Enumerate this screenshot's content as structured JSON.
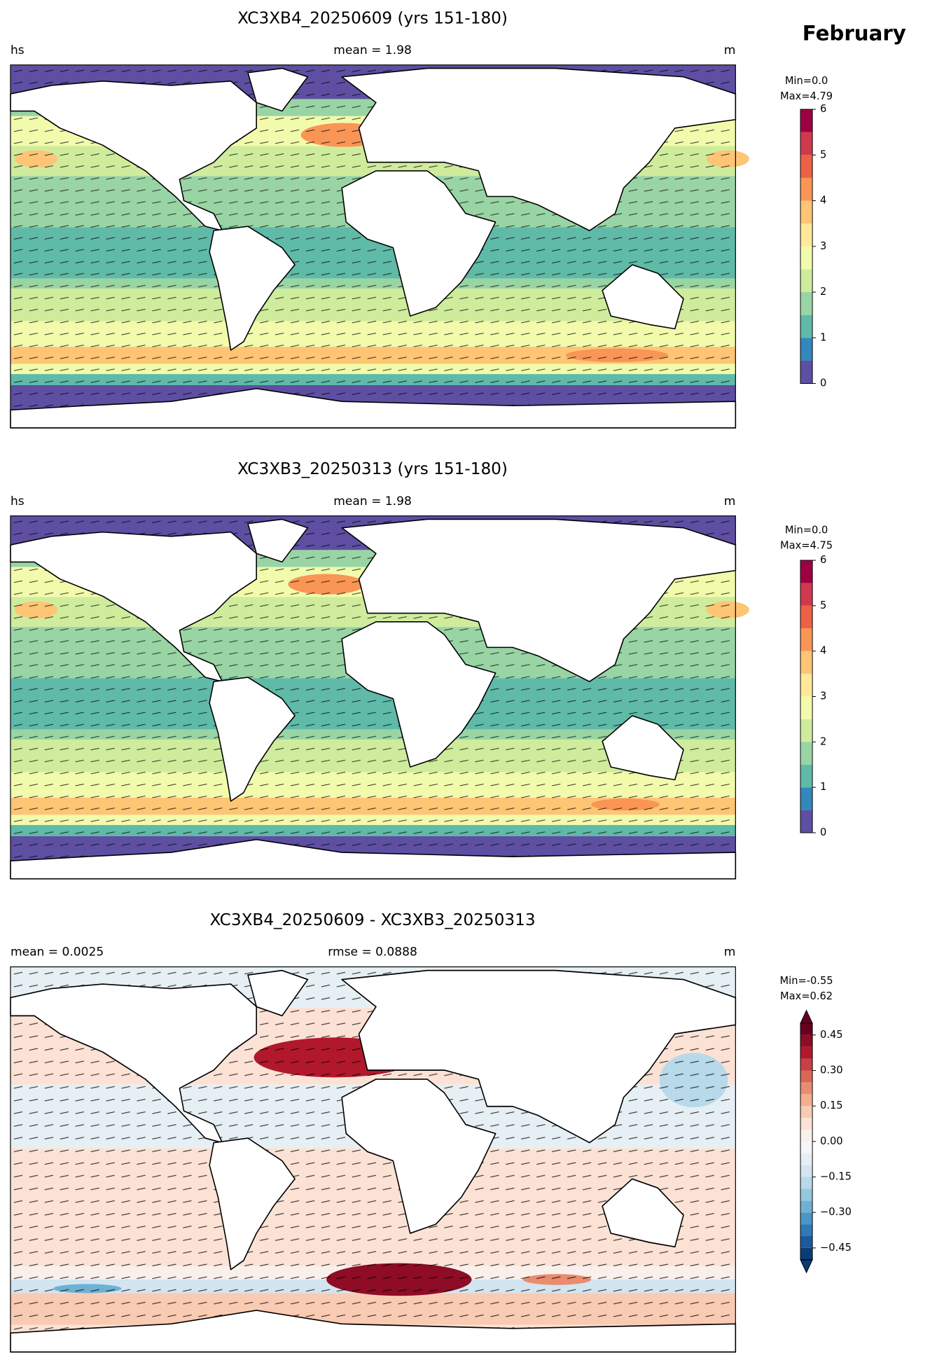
{
  "title": "February",
  "chart_data": [
    {
      "type": "contour-map",
      "title": "XC3XB4_20250609 (yrs 151-180)",
      "left_label": "hs",
      "center_label": "mean = 1.98",
      "right_label": "m",
      "min_label": "Min=0.0",
      "max_label": "Max=4.79",
      "ylim": [
        0,
        6
      ],
      "yticks": [
        0,
        1,
        2,
        3,
        4,
        5,
        6
      ],
      "levels": [
        0,
        0.5,
        1,
        1.5,
        2,
        2.5,
        3,
        3.5,
        4,
        4.5,
        5,
        5.5,
        6
      ],
      "colors": [
        "#5e4fa2",
        "#3288bd",
        "#5fbaa8",
        "#99d5a4",
        "#cfec9d",
        "#f2faac",
        "#fee99a",
        "#fdc574",
        "#f99555",
        "#ec6145",
        "#d0384e",
        "#9e0142"
      ]
    },
    {
      "type": "contour-map",
      "title": "XC3XB3_20250313 (yrs 151-180)",
      "left_label": "hs",
      "center_label": "mean = 1.98",
      "right_label": "m",
      "min_label": "Min=0.0",
      "max_label": "Max=4.75",
      "ylim": [
        0,
        6
      ],
      "yticks": [
        0,
        1,
        2,
        3,
        4,
        5,
        6
      ],
      "levels": [
        0,
        0.5,
        1,
        1.5,
        2,
        2.5,
        3,
        3.5,
        4,
        4.5,
        5,
        5.5,
        6
      ],
      "colors": [
        "#5e4fa2",
        "#3288bd",
        "#5fbaa8",
        "#99d5a4",
        "#cfec9d",
        "#f2faac",
        "#fee99a",
        "#fdc574",
        "#f99555",
        "#ec6145",
        "#d0384e",
        "#9e0142"
      ]
    },
    {
      "type": "contour-map",
      "title": "XC3XB4_20250609 - XC3XB3_20250313",
      "left_label": "mean = 0.0025",
      "center_label": "rmse = 0.0888",
      "right_label": "m",
      "min_label": "Min=-0.55",
      "max_label": "Max=0.62",
      "ylim": [
        -0.5,
        0.5
      ],
      "extend": "both",
      "yticks": [
        {
          "value": -0.45,
          "label": "−0.45"
        },
        {
          "value": -0.3,
          "label": "−0.30"
        },
        {
          "value": -0.15,
          "label": "−0.15"
        },
        {
          "value": 0,
          "label": "0.00"
        },
        {
          "value": 0.15,
          "label": "0.15"
        },
        {
          "value": 0.3,
          "label": "0.30"
        },
        0.45
      ],
      "levels": [
        -0.5,
        -0.45,
        -0.4,
        -0.35,
        -0.3,
        -0.25,
        -0.2,
        -0.15,
        -0.1,
        -0.05,
        0,
        0.05,
        0.1,
        0.15,
        0.2,
        0.25,
        0.3,
        0.35,
        0.4,
        0.45,
        0.5
      ],
      "colors": [
        "#0b3c75",
        "#1b5a9c",
        "#2f79b5",
        "#4a96c5",
        "#6fb1d4",
        "#96c7e0",
        "#b8d9e9",
        "#d2e5f0",
        "#e6eff4",
        "#f4f6f7",
        "#f9f0eb",
        "#fbe2d5",
        "#f9cbb3",
        "#f5ae8e",
        "#ea8c6e",
        "#da6754",
        "#c74043",
        "#b2182b",
        "#8e0c25",
        "#67001f"
      ]
    }
  ]
}
